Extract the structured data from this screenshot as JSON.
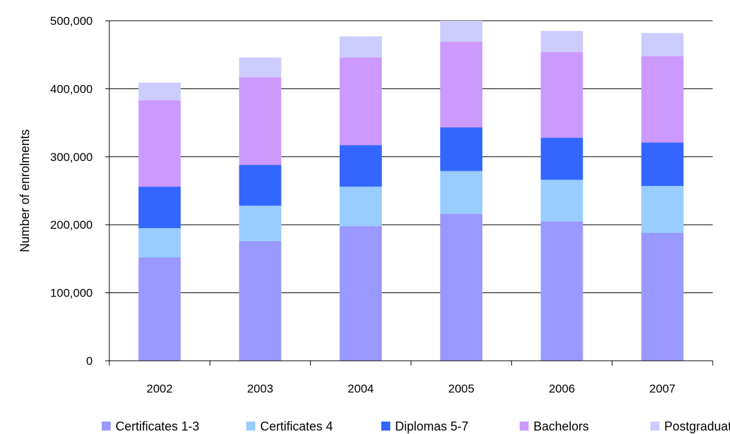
{
  "chart_data": {
    "type": "bar",
    "stacked": true,
    "title": "",
    "xlabel": "",
    "ylabel": "Number of enrolments",
    "ylim": [
      0,
      500000
    ],
    "yticks": [
      "0",
      "100,000",
      "200,000",
      "300,000",
      "400,000",
      "500,000"
    ],
    "ytick_values": [
      0,
      100000,
      200000,
      300000,
      400000,
      500000
    ],
    "grid": true,
    "legend_position": "bottom",
    "categories": [
      "2002",
      "2003",
      "2004",
      "2005",
      "2006",
      "2007"
    ],
    "series": [
      {
        "name": "Certificates 1-3",
        "color": "#9999FF",
        "values": [
          152000,
          176000,
          198000,
          216000,
          205000,
          188000
        ]
      },
      {
        "name": "Certificates 4",
        "color": "#99CCFF",
        "values": [
          43000,
          52000,
          58000,
          63000,
          61000,
          69000
        ]
      },
      {
        "name": "Diplomas 5-7",
        "color": "#3366FF",
        "values": [
          61000,
          60000,
          61000,
          64000,
          62000,
          64000
        ]
      },
      {
        "name": "Bachelors",
        "color": "#CC99FF",
        "values": [
          127000,
          129000,
          129000,
          126000,
          126000,
          127000
        ]
      },
      {
        "name": "Postgraduate",
        "color": "#CCCCFF",
        "values": [
          26000,
          29000,
          31000,
          31000,
          31000,
          34000
        ]
      }
    ]
  }
}
